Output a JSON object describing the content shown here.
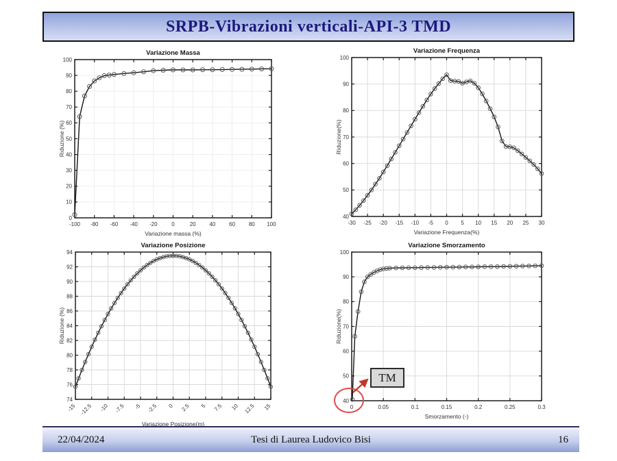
{
  "slide": {
    "title": "SRPB-Vibrazioni verticali-API-3 TMD",
    "footer": {
      "date": "22/04/2024",
      "center": "Tesi di Laurea Ludovico Bisi",
      "page": "16"
    }
  },
  "annotation": {
    "label": "TM",
    "color": "#cc3333",
    "box_fill": "#d9d9d9"
  },
  "colors": {
    "title_text": "#1a1a7e",
    "title_gradient_top": "#8fa3dc",
    "title_gradient_bottom": "#d6def4",
    "footer_gradient_top": "#eef1fa",
    "footer_gradient_bottom": "#8d9ed2",
    "plot_line": "#141414",
    "marker": "#5a5a5a",
    "grid": "#dcdcdc",
    "annotation_red": "#e04a4a"
  },
  "chart_data": [
    {
      "type": "line",
      "title": "Variazione Massa",
      "xlabel": "Variazione massa (%)",
      "ylabel": "Riduzione (%)",
      "xlim": [
        -100,
        100
      ],
      "ylim": [
        0,
        100
      ],
      "xticks": [
        -100,
        -80,
        -60,
        -40,
        -20,
        0,
        20,
        40,
        60,
        80,
        100
      ],
      "xtick_labels": [
        "-100",
        "-80",
        "-60",
        "-40",
        "-20",
        "0",
        "20",
        "40",
        "60",
        "80",
        "100"
      ],
      "yticks": [
        0,
        10,
        20,
        30,
        40,
        50,
        60,
        70,
        80,
        90,
        100
      ],
      "ytick_labels": [
        "0",
        "10",
        "20",
        "30",
        "40",
        "50",
        "60",
        "70",
        "80",
        "90",
        "100"
      ],
      "grid": true,
      "grid_color": "#ececec",
      "rotate_xtick_labels": 0,
      "legend": null,
      "x": [
        -100,
        -95,
        -90,
        -85,
        -80,
        -75,
        -70,
        -65,
        -60,
        -50,
        -40,
        -30,
        -20,
        -10,
        0,
        10,
        20,
        30,
        40,
        50,
        60,
        70,
        80,
        90,
        100
      ],
      "y": [
        2,
        64,
        77,
        83,
        86.5,
        88.5,
        89.8,
        90.2,
        90.6,
        91.2,
        91.7,
        92.3,
        93,
        93.3,
        93.5,
        93.5,
        93.5,
        93.6,
        93.6,
        93.7,
        93.8,
        93.9,
        94,
        94.1,
        94.2
      ]
    },
    {
      "type": "line",
      "title": "Variazione Frequenza",
      "xlabel": "Variazione Frequenza(%)",
      "ylabel": "Riduzione(%)",
      "xlim": [
        -30,
        30
      ],
      "ylim": [
        40,
        100
      ],
      "xticks": [
        -30,
        -25,
        -20,
        -15,
        -10,
        -5,
        0,
        5,
        10,
        15,
        20,
        25,
        30
      ],
      "xtick_labels": [
        "-30",
        "-25",
        "-20",
        "-15",
        "-10",
        "-5",
        "0",
        "5",
        "10",
        "15",
        "20",
        "25",
        "30"
      ],
      "yticks": [
        40,
        50,
        60,
        70,
        80,
        90,
        100
      ],
      "ytick_labels": [
        "40",
        "50",
        "60",
        "70",
        "80",
        "90",
        "100"
      ],
      "grid": true,
      "grid_color": "#d8d8d8",
      "rotate_xtick_labels": 0,
      "legend": null,
      "x": [
        -30,
        -28.75,
        -27.5,
        -26.25,
        -25,
        -23.75,
        -22.5,
        -21.25,
        -20,
        -18.75,
        -17.5,
        -16.25,
        -15,
        -13.75,
        -12.5,
        -11.25,
        -10,
        -8.75,
        -7.5,
        -6.25,
        -5,
        -3.75,
        -2.5,
        -1.25,
        0,
        1.25,
        2.5,
        3.75,
        5,
        6.25,
        7.5,
        8.75,
        10,
        11.25,
        12.5,
        13.75,
        15,
        16.25,
        17.5,
        18.75,
        20,
        21.25,
        22.5,
        23.75,
        25,
        26.25,
        27.5,
        28.75,
        30
      ],
      "y": [
        41,
        42.5,
        44.2,
        46,
        48,
        50,
        52.2,
        54.4,
        56.8,
        59.2,
        61.7,
        64.2,
        66.7,
        69.2,
        71.7,
        74.2,
        76.7,
        79.2,
        81.6,
        84,
        86.2,
        88.3,
        90.2,
        92,
        93.5,
        91.3,
        91.1,
        91,
        90.3,
        90.8,
        91.2,
        90.3,
        88.6,
        86.3,
        83.6,
        80.7,
        77.6,
        73.8,
        68.5,
        66.4,
        66.3,
        65.9,
        64.8,
        63.6,
        62.3,
        61,
        59.6,
        58,
        56.2
      ]
    },
    {
      "type": "line",
      "title": "Variazione Posizione",
      "xlabel": "Variazione Posizione(m)",
      "ylabel": "Riduzione (%)",
      "xlim": [
        -15,
        15
      ],
      "ylim": [
        74,
        94
      ],
      "xticks": [
        -15,
        -12.5,
        -10,
        -7.5,
        -5,
        -2.5,
        0,
        2.5,
        5,
        7.5,
        10,
        12.5,
        15
      ],
      "xtick_labels": [
        "-15",
        "-12.5",
        "-10",
        "-7.5",
        "-5",
        "-2.5",
        "0",
        "2.5",
        "5",
        "7.5",
        "10",
        "12.5",
        "15"
      ],
      "yticks": [
        74,
        76,
        78,
        80,
        82,
        84,
        86,
        88,
        90,
        92,
        94
      ],
      "ytick_labels": [
        "74",
        "76",
        "78",
        "80",
        "82",
        "84",
        "86",
        "88",
        "90",
        "92",
        "94"
      ],
      "grid": true,
      "grid_color": "#d8d8d8",
      "rotate_xtick_labels": 45,
      "legend": null,
      "x": [
        -15,
        -14.5,
        -14,
        -13.5,
        -13,
        -12.5,
        -12,
        -11.5,
        -11,
        -10.5,
        -10,
        -9.5,
        -9,
        -8.5,
        -8,
        -7.5,
        -7,
        -6.5,
        -6,
        -5.5,
        -5,
        -4.5,
        -4,
        -3.5,
        -3,
        -2.5,
        -2,
        -1.5,
        -1,
        -0.5,
        0,
        0.5,
        1,
        1.5,
        2,
        2.5,
        3,
        3.5,
        4,
        4.5,
        5,
        5.5,
        6,
        6.5,
        7,
        7.5,
        8,
        8.5,
        9,
        9.5,
        10,
        10.5,
        11,
        11.5,
        12,
        12.5,
        13,
        13.5,
        14,
        14.5,
        15
      ],
      "y": [
        75.7,
        76.86,
        77.99,
        79.08,
        80.13,
        81.14,
        82.11,
        83.04,
        83.93,
        84.78,
        85.59,
        86.36,
        87.09,
        87.78,
        88.44,
        89.05,
        89.62,
        90.16,
        90.65,
        91.11,
        91.52,
        91.9,
        92.23,
        92.53,
        92.79,
        93.01,
        93.18,
        93.32,
        93.42,
        93.48,
        93.5,
        93.48,
        93.42,
        93.32,
        93.18,
        93.01,
        92.79,
        92.53,
        92.23,
        91.9,
        91.52,
        91.11,
        90.65,
        90.16,
        89.62,
        89.05,
        88.44,
        87.78,
        87.09,
        86.36,
        85.59,
        84.78,
        83.93,
        83.04,
        82.11,
        81.14,
        80.13,
        79.08,
        77.99,
        76.86,
        75.7
      ]
    },
    {
      "type": "line",
      "title": "Variazione Smorzamento",
      "xlabel": "Smorzamento (-)",
      "ylabel": "Riduzione(%)",
      "xlim": [
        0,
        0.3
      ],
      "ylim": [
        40,
        100
      ],
      "xticks": [
        0,
        0.05,
        0.1,
        0.15,
        0.2,
        0.25,
        0.3
      ],
      "xtick_labels": [
        "0",
        "0.05",
        "0.1",
        "0.15",
        "0.2",
        "0.25",
        "0.3"
      ],
      "yticks": [
        40,
        50,
        60,
        70,
        80,
        90,
        100
      ],
      "ytick_labels": [
        "40",
        "50",
        "60",
        "70",
        "80",
        "90",
        "100"
      ],
      "grid": true,
      "grid_color": "#d8d8d8",
      "rotate_xtick_labels": 0,
      "legend": null,
      "x": [
        0.001,
        0.005,
        0.01,
        0.015,
        0.02,
        0.025,
        0.03,
        0.035,
        0.04,
        0.045,
        0.05,
        0.055,
        0.06,
        0.07,
        0.08,
        0.09,
        0.1,
        0.11,
        0.12,
        0.13,
        0.14,
        0.15,
        0.16,
        0.17,
        0.18,
        0.19,
        0.2,
        0.21,
        0.22,
        0.23,
        0.24,
        0.25,
        0.26,
        0.27,
        0.28,
        0.29,
        0.3
      ],
      "y": [
        40.5,
        66,
        76,
        84,
        88,
        90,
        91,
        91.8,
        92.4,
        92.9,
        93.2,
        93.4,
        93.5,
        93.6,
        93.65,
        93.7,
        93.7,
        93.75,
        93.8,
        93.8,
        93.85,
        93.9,
        93.9,
        93.95,
        94,
        94,
        94.05,
        94.1,
        94.1,
        94.15,
        94.2,
        94.25,
        94.3,
        94.35,
        94.4,
        94.45,
        94.5
      ]
    }
  ]
}
